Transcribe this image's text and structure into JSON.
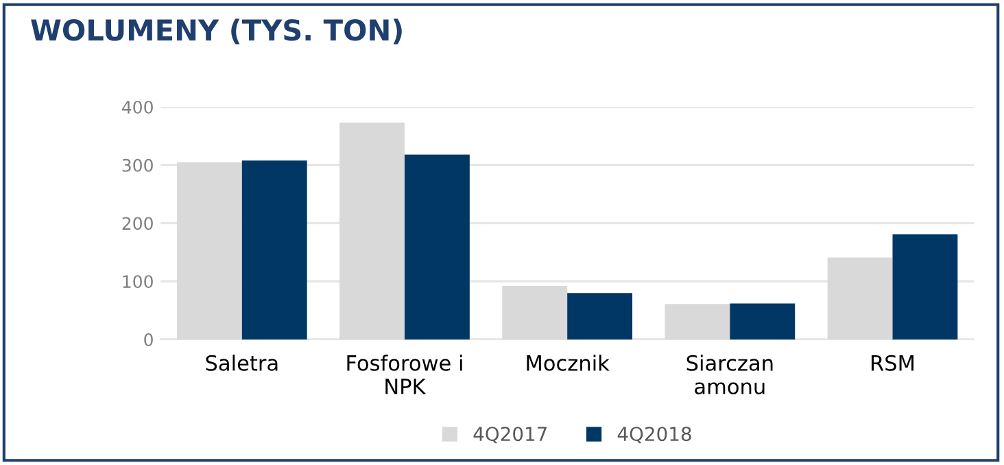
{
  "chart_data": {
    "type": "bar",
    "title": "WOLUMENY (TYS. TON)",
    "categories": [
      "Saletra",
      "Fosforowe i NPK",
      "Mocznik",
      "Siarczan amonu",
      "RSM"
    ],
    "series": [
      {
        "name": "4Q2017",
        "color": "#d9d9d9",
        "values": [
          305,
          373,
          92,
          61,
          141
        ]
      },
      {
        "name": "4Q2018",
        "color": "#003764",
        "values": [
          308,
          318,
          80,
          62,
          181
        ]
      }
    ],
    "ylim": [
      0,
      400
    ],
    "yticks": [
      0,
      100,
      200,
      300,
      400
    ],
    "grid": "y",
    "legend": "bottom"
  }
}
